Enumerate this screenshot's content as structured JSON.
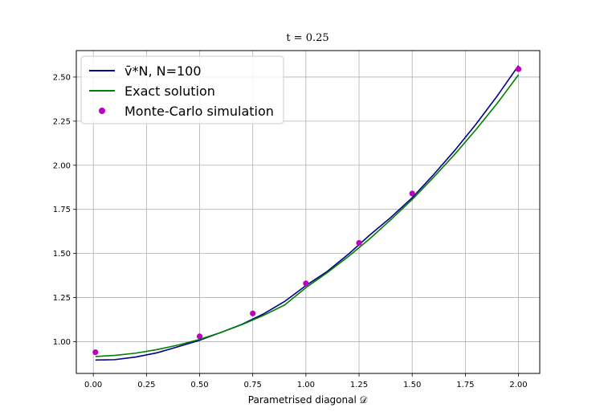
{
  "chart_data": {
    "type": "line",
    "title": "t = 0.25",
    "xlabel": "Parametrised diagonal 𝒟",
    "ylabel": "",
    "xlim": [
      -0.08,
      2.1
    ],
    "ylim": [
      0.82,
      2.65
    ],
    "x_ticks": [
      0.0,
      0.25,
      0.5,
      0.75,
      1.0,
      1.25,
      1.5,
      1.75,
      2.0
    ],
    "x_tick_labels": [
      "0.00",
      "0.25",
      "0.50",
      "0.75",
      "1.00",
      "1.25",
      "1.50",
      "1.75",
      "2.00"
    ],
    "y_ticks": [
      1.0,
      1.25,
      1.5,
      1.75,
      2.0,
      2.25,
      2.5
    ],
    "y_tick_labels": [
      "1.00",
      "1.25",
      "1.50",
      "1.75",
      "2.00",
      "2.25",
      "2.50"
    ],
    "grid": true,
    "legend_placement": "upper-left",
    "series": [
      {
        "name": "v̄*N, N=100",
        "kind": "line",
        "color": "#00008b",
        "x": [
          0.01,
          0.1,
          0.2,
          0.3,
          0.4,
          0.5,
          0.6,
          0.7,
          0.8,
          0.9,
          1.0,
          1.1,
          1.2,
          1.3,
          1.4,
          1.5,
          1.6,
          1.7,
          1.8,
          1.9,
          2.0
        ],
        "y": [
          0.896,
          0.898,
          0.913,
          0.937,
          0.972,
          1.008,
          1.052,
          1.099,
          1.157,
          1.228,
          1.318,
          1.398,
          1.496,
          1.604,
          1.705,
          1.816,
          1.946,
          2.084,
          2.233,
          2.393,
          2.565
        ]
      },
      {
        "name": "Exact solution",
        "kind": "line",
        "color": "#008000",
        "x": [
          0.01,
          0.1,
          0.2,
          0.3,
          0.4,
          0.5,
          0.6,
          0.7,
          0.8,
          0.9,
          1.0,
          1.1,
          1.2,
          1.3,
          1.4,
          1.5,
          1.6,
          1.7,
          1.8,
          1.9,
          2.0
        ],
        "y": [
          0.916,
          0.922,
          0.935,
          0.955,
          0.981,
          1.013,
          1.052,
          1.097,
          1.149,
          1.208,
          1.306,
          1.391,
          1.483,
          1.583,
          1.692,
          1.806,
          1.931,
          2.062,
          2.202,
          2.351,
          2.513
        ]
      },
      {
        "name": "Monte-Carlo simulation",
        "kind": "scatter",
        "color": "#c000c0",
        "x": [
          0.01,
          0.5,
          0.75,
          1.0,
          1.25,
          1.5,
          2.0
        ],
        "y": [
          0.94,
          1.03,
          1.16,
          1.33,
          1.56,
          1.84,
          2.545
        ]
      }
    ]
  }
}
